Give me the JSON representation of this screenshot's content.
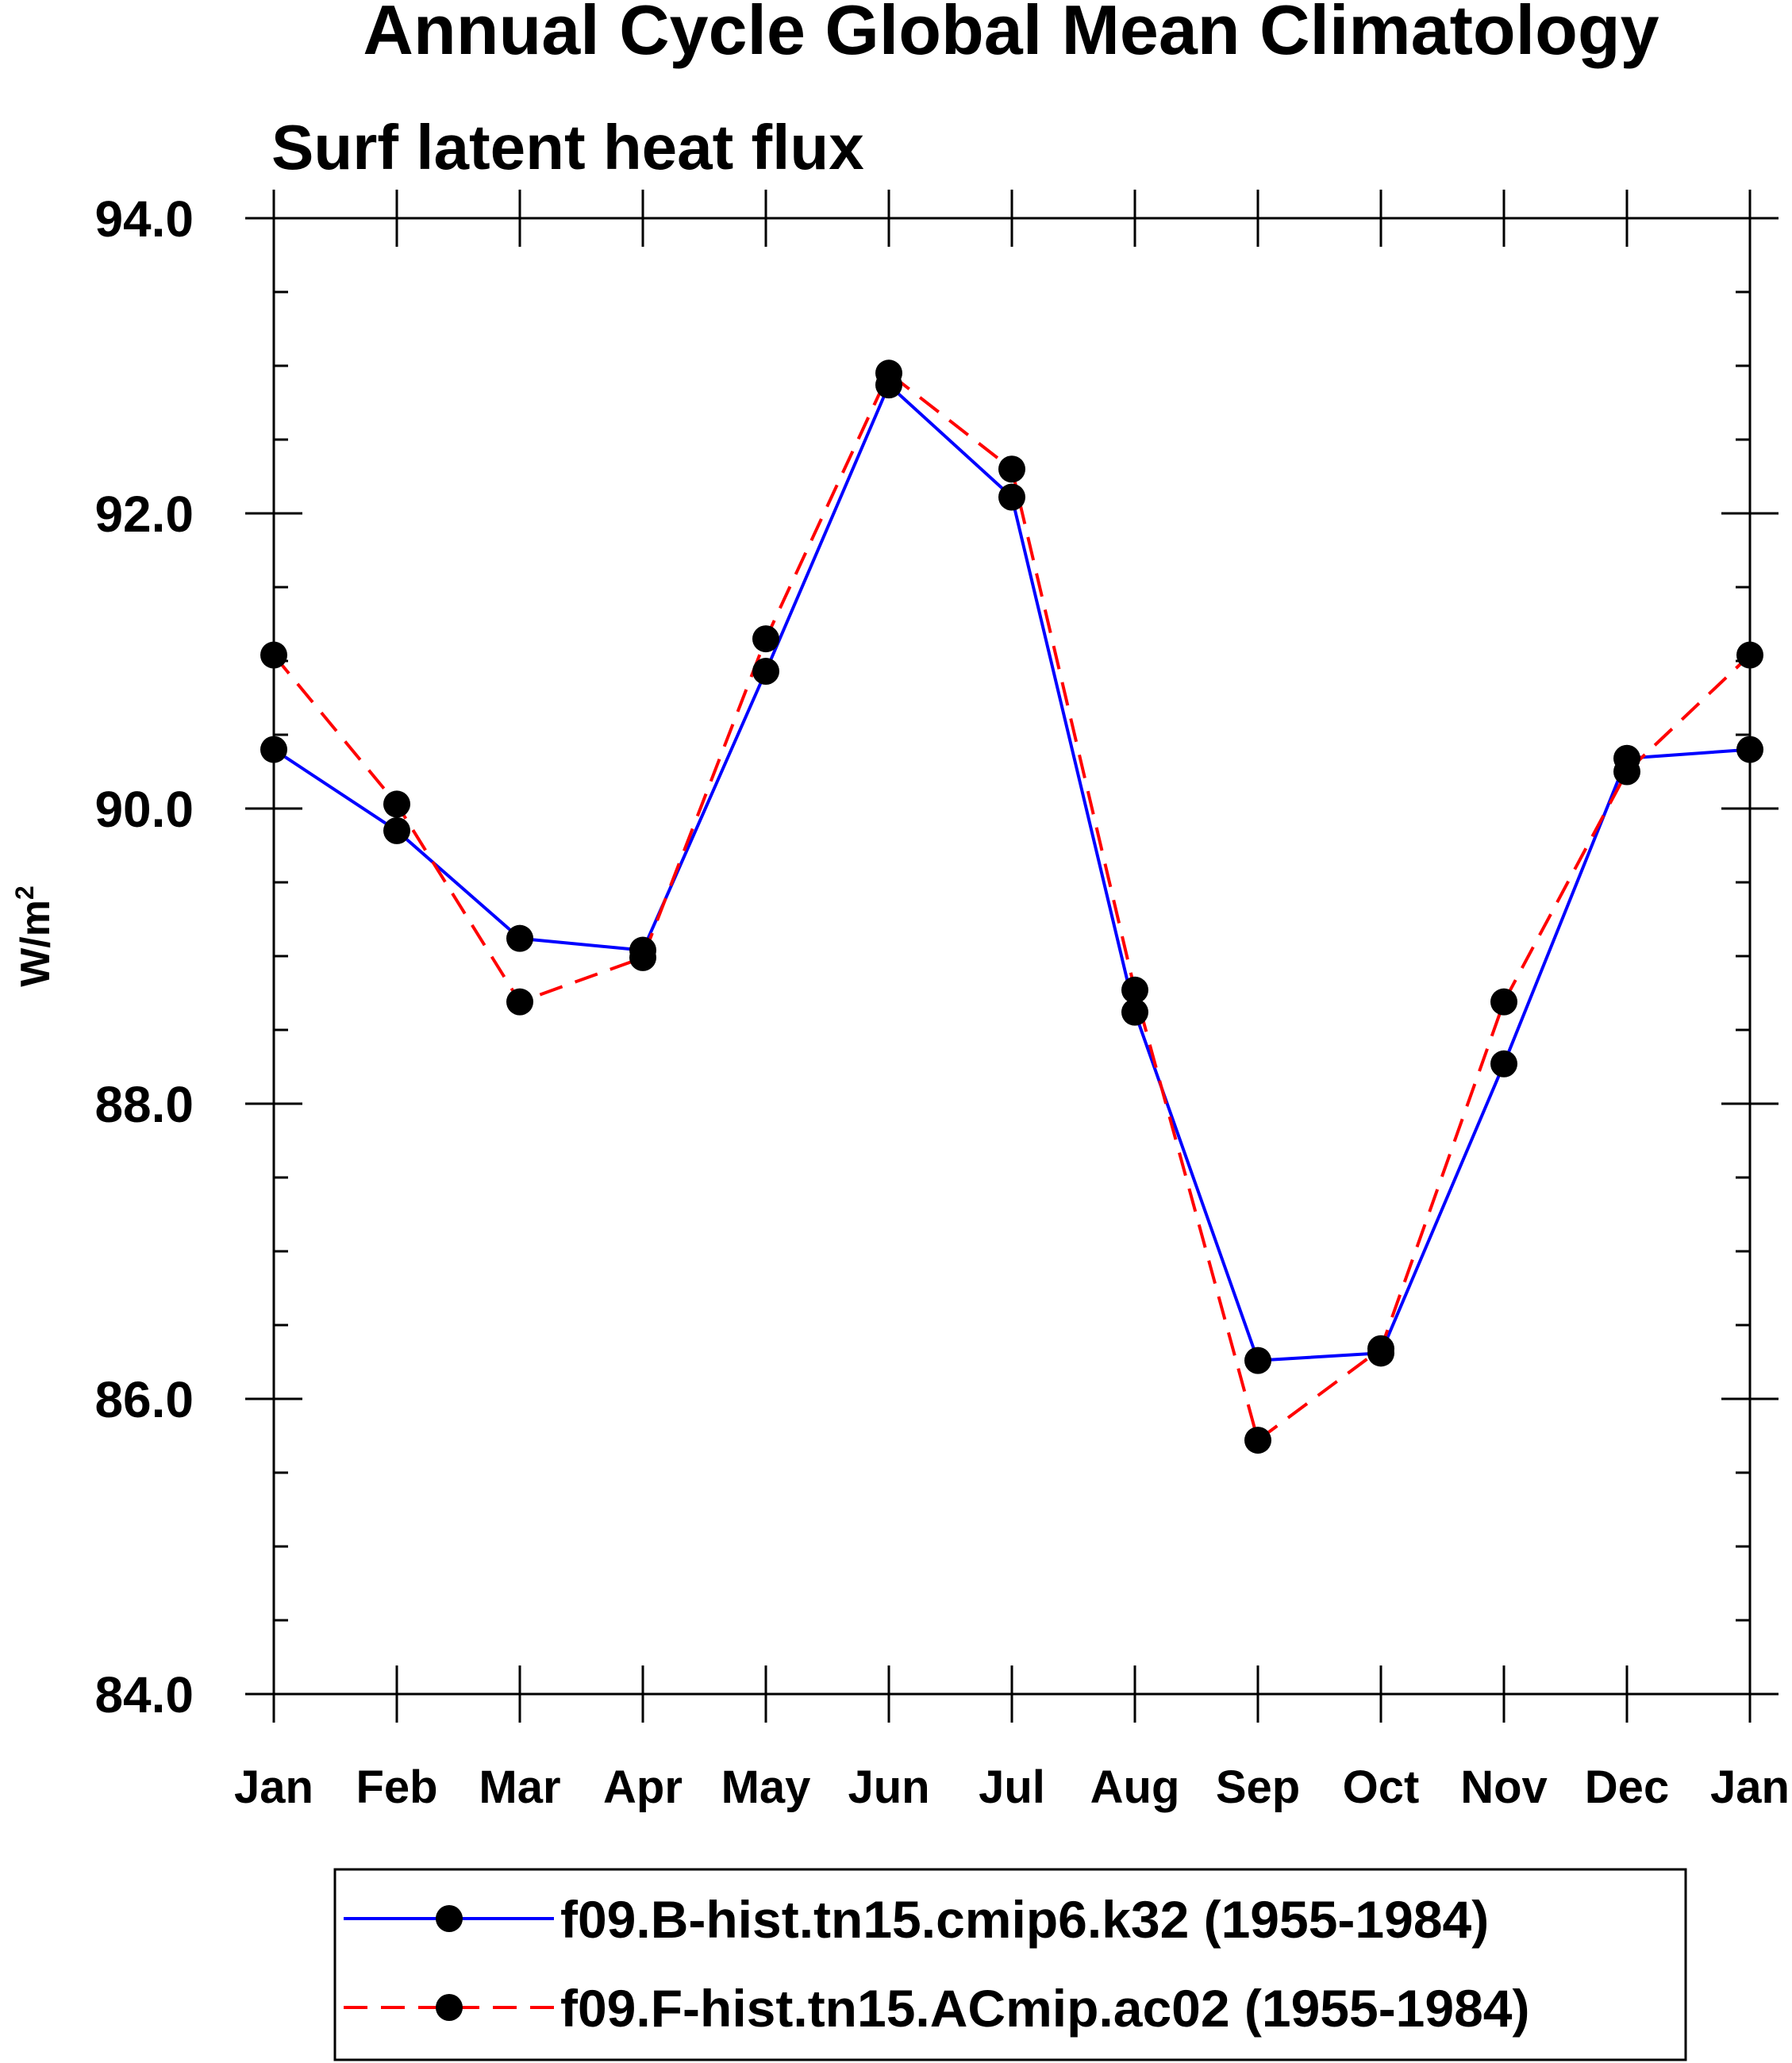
{
  "chart_data": {
    "type": "line",
    "title": "Annual Cycle Global Mean Climatology",
    "subtitle": "Surf latent heat flux",
    "ylabel": "W/m",
    "ylabel_superscript": "2",
    "xlabel": "",
    "ylim": [
      84.0,
      94.0
    ],
    "yticks": [
      84.0,
      86.0,
      88.0,
      90.0,
      92.0,
      94.0
    ],
    "ytick_labels": [
      "84.0",
      "86.0",
      "88.0",
      "90.0",
      "92.0",
      "94.0"
    ],
    "categories": [
      "Jan",
      "Feb",
      "Mar",
      "Apr",
      "May",
      "Jun",
      "Jul",
      "Aug",
      "Sep",
      "Oct",
      "Nov",
      "Dec",
      "Jan"
    ],
    "grid": false,
    "legend_position": "bottom",
    "series": [
      {
        "name": "f09.B-hist.tn15.cmip6.k32 (1955-1984)",
        "color": "#0000ff",
        "line_style": "solid",
        "marker": "filled-circle",
        "values": [
          90.4,
          89.85,
          89.12,
          89.04,
          90.93,
          92.87,
          92.11,
          88.62,
          86.26,
          86.31,
          88.27,
          90.34,
          90.4
        ]
      },
      {
        "name": "f09.F-hist.tn15.ACmip.ac02 (1955-1984)",
        "color": "#ff0000",
        "line_style": "dashed",
        "marker": "filled-circle",
        "values": [
          91.04,
          90.03,
          88.69,
          88.99,
          91.15,
          92.95,
          92.3,
          88.77,
          85.72,
          86.34,
          88.69,
          90.25,
          91.04
        ]
      }
    ]
  }
}
